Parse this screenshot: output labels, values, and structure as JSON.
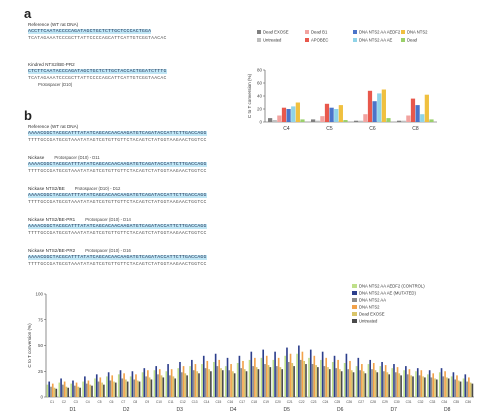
{
  "panels": {
    "a": "a",
    "b": "b"
  },
  "panel_a": {
    "reference_label": "Reference (WT rat DNA)",
    "reference_seq_1": "ACCTTCAATACCCCAGATAGCTGCTCTTGCTCCCACTGGA",
    "reference_seq_2": "TCATAGAAATCCCGCTTATTCCCCAGCATTCATTGTCGGTAACAC",
    "edited_label": "Kindred NTS2/BE-PR2",
    "edited_seq_1": "CTCTTCAATACCCAGATAGCTGCTCTTGCTACCACTGGATCTTTG",
    "edited_seq_2": "TCATAGAAATCCCGCTTATTCCCCAGCATTCATTGTCGGTAACAC",
    "edited_caption": "Protospacer (D10)"
  },
  "panel_b": {
    "blocks": [
      {
        "label": "Reference (WT rat DNA)",
        "caption": "",
        "seq1": "AAAACGGCTACGCATTTATATCAGCACAACAAGATGTCAGATACCATTCTTGACCAGG",
        "seq2": "TTTTGCCGATGCGTAAATATAGTCGTGTTGTTCTACAGTCTATGGTAAGAACTGGTCC"
      },
      {
        "label": "Nickase",
        "caption": "Protospacer (D10) - D11",
        "seq1": "AAAACGGCTACGCATTTATATCAGCACAACAAGATGTCAGATACCATTCTTGACCAGG",
        "seq2": "TTTTGCCGATGCGTAAATATAGTCGTGTTGTTCTACAGTCTATGGTAAGAACTGGTCC"
      },
      {
        "label": "Nickase NTS2/BE",
        "caption": "Protospacer (D10) - D12",
        "seq1": "AAAACGGCTACGCATTTATATCAGCACAACAAGATGTCAGATACCATTCTTGACCAGG",
        "seq2": "TTTTGCCGATGCGTAAATATAGTCGTGTTGTTCTACAGTCTATGGTAAGAACTGGTCC"
      },
      {
        "label": "Nickase NTS2/BE-PR1",
        "caption": "Protospacer (D10) - D14",
        "seq1": "AAAACGGCTACGCATTTATATCAGCACAACAAGATGTCAGATACCATTCTTGACCAGG",
        "seq2": "TTTTGCCGATGCGTAAATATAGTCGTGTTGTTCTACAGTCTATGGTAAGAACTGGTCC"
      },
      {
        "label": "Nickase NTS2/BE-PR2",
        "caption": "Protospacer (D10) - D16",
        "seq1": "AAAACGGCTACGCATTTATATCAGCACAACAAGATGTCAGATACCATTCTTGACCAGG",
        "seq2": "TTTTGCCGATGCGTAAATATAGTCGTGTTGTTCTACAGTCTATGGTAAGAACTGGTCC"
      }
    ]
  },
  "chart_data": [
    {
      "type": "bar",
      "title": "",
      "xlabel": "",
      "ylabel": "C to T conversion (%)",
      "ylim": [
        0,
        80
      ],
      "categories": [
        "C4",
        "C5",
        "C6",
        "C8"
      ],
      "legend_position": "top-right",
      "series": [
        {
          "name": "Dead EXOSE",
          "color": "#7f7f7f",
          "values": [
            6,
            4,
            2,
            2
          ]
        },
        {
          "name": "Untreated",
          "color": "#bdbdbd",
          "values": [
            3,
            2,
            2,
            2
          ]
        },
        {
          "name": "Dead B1",
          "color": "#f2a3a0",
          "values": [
            10,
            9,
            12,
            10
          ]
        },
        {
          "name": "APOBEC",
          "color": "#e8584c",
          "values": [
            22,
            28,
            48,
            36
          ]
        },
        {
          "name": "DNA NTS2 AA AEDF2",
          "color": "#4a74c9",
          "values": [
            20,
            22,
            32,
            26
          ]
        },
        {
          "name": "DNA NTS2 AA AE",
          "color": "#8fd3e8",
          "values": [
            24,
            20,
            44,
            12
          ]
        },
        {
          "name": "DNA NTS2",
          "color": "#f0c040",
          "values": [
            30,
            26,
            50,
            42
          ]
        },
        {
          "name": "Dead",
          "color": "#9ad06a",
          "values": [
            4,
            3,
            6,
            4
          ]
        }
      ]
    },
    {
      "type": "bar",
      "title": "",
      "xlabel": "",
      "ylabel": "C to T conversion (%)",
      "ylim": [
        0,
        100
      ],
      "legend_position": "top-right",
      "categories": [
        "C1",
        "C2",
        "C3",
        "C4",
        "C5",
        "C6",
        "C7",
        "C8",
        "C9",
        "C10",
        "C11",
        "C12",
        "C13",
        "C14",
        "C15",
        "C16",
        "C17",
        "C18",
        "C19",
        "C20",
        "C21",
        "C22",
        "C23",
        "C24",
        "C25",
        "C26",
        "C27",
        "C28",
        "C29",
        "C30",
        "C31",
        "C32",
        "C33",
        "C34",
        "C35",
        "C36"
      ],
      "group_labels": [
        "D1",
        "D2",
        "D3",
        "D4",
        "D5",
        "D6",
        "D7",
        "D8"
      ],
      "series": [
        {
          "name": "DNA NTS2 AA AEDF2 (CONTROL)",
          "color": "#bfe08a",
          "values": [
            12,
            14,
            13,
            15,
            18,
            20,
            22,
            20,
            24,
            26,
            25,
            28,
            30,
            32,
            34,
            30,
            33,
            36,
            38,
            36,
            40,
            42,
            38,
            36,
            34,
            33,
            30,
            32,
            30,
            28,
            26,
            25,
            22,
            24,
            20,
            18
          ]
        },
        {
          "name": "DNA NTS2 AA AE (MUTATED)",
          "color": "#2c3e8c",
          "values": [
            15,
            18,
            16,
            20,
            22,
            24,
            26,
            25,
            28,
            30,
            32,
            34,
            36,
            40,
            42,
            38,
            40,
            44,
            46,
            44,
            48,
            50,
            46,
            44,
            40,
            42,
            38,
            36,
            34,
            32,
            30,
            28,
            26,
            28,
            24,
            22
          ]
        },
        {
          "name": "DNA NTS2 AA",
          "color": "#8c8c8c",
          "values": [
            10,
            12,
            11,
            13,
            15,
            16,
            18,
            17,
            20,
            22,
            21,
            24,
            26,
            28,
            30,
            26,
            28,
            30,
            32,
            30,
            34,
            36,
            32,
            30,
            28,
            27,
            26,
            27,
            25,
            24,
            22,
            21,
            19,
            20,
            17,
            15
          ]
        },
        {
          "name": "DNA NTS2",
          "color": "#f2a24a",
          "values": [
            13,
            15,
            14,
            16,
            19,
            21,
            23,
            22,
            26,
            27,
            27,
            30,
            32,
            35,
            36,
            32,
            35,
            38,
            40,
            38,
            42,
            44,
            40,
            38,
            36,
            35,
            32,
            33,
            31,
            29,
            27,
            26,
            23,
            25,
            21,
            19
          ]
        },
        {
          "name": "Dead EXOSE",
          "color": "#d9c56a",
          "values": [
            9,
            10,
            10,
            12,
            14,
            15,
            17,
            16,
            19,
            21,
            20,
            23,
            25,
            27,
            28,
            25,
            27,
            29,
            31,
            29,
            33,
            35,
            31,
            29,
            27,
            26,
            25,
            26,
            24,
            23,
            21,
            20,
            18,
            19,
            16,
            14
          ]
        },
        {
          "name": "Untreated",
          "color": "#4a4a4a",
          "values": [
            8,
            9,
            9,
            11,
            12,
            14,
            15,
            15,
            17,
            19,
            18,
            21,
            23,
            25,
            26,
            23,
            25,
            27,
            29,
            27,
            30,
            32,
            29,
            27,
            25,
            24,
            23,
            24,
            22,
            21,
            20,
            19,
            17,
            18,
            15,
            13
          ]
        }
      ]
    }
  ]
}
